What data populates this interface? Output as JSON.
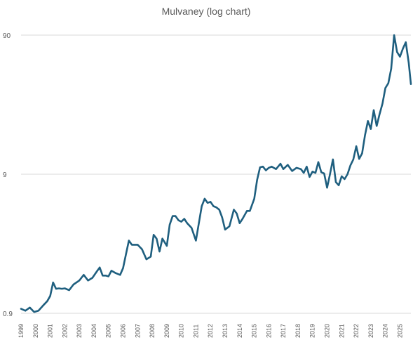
{
  "chart_data": {
    "type": "line",
    "title": "Mulvaney (log chart)",
    "y_scale": "log",
    "ylim": [
      0.9,
      90
    ],
    "y_ticks": [
      "0.9",
      "9",
      "90"
    ],
    "x_ticks": [
      "1999",
      "2000",
      "2001",
      "2002",
      "2003",
      "2004",
      "2005",
      "2006",
      "2007",
      "2008",
      "2009",
      "2010",
      "2011",
      "2012",
      "2013",
      "2014",
      "2015",
      "2016",
      "2017",
      "2018",
      "2019",
      "2020",
      "2021",
      "2022",
      "2023",
      "2024",
      "2025"
    ],
    "xlim": [
      1999,
      2025.75
    ],
    "grid": true,
    "legend": "none",
    "series": [
      {
        "color": "#1f5f7f",
        "x": [
          1999.0,
          1999.3,
          1999.6,
          1999.9,
          2000.2,
          2000.5,
          2000.8,
          2001.0,
          2001.2,
          2001.4,
          2001.6,
          2001.8,
          2002.0,
          2002.3,
          2002.6,
          2003.0,
          2003.3,
          2003.6,
          2003.9,
          2004.2,
          2004.4,
          2004.6,
          2004.8,
          2005.0,
          2005.2,
          2005.5,
          2005.8,
          2006.0,
          2006.2,
          2006.4,
          2006.6,
          2007.0,
          2007.3,
          2007.6,
          2007.9,
          2008.1,
          2008.3,
          2008.5,
          2008.7,
          2009.0,
          2009.2,
          2009.4,
          2009.6,
          2009.8,
          2010.0,
          2010.2,
          2010.4,
          2010.7,
          2011.0,
          2011.2,
          2011.4,
          2011.6,
          2011.8,
          2012.0,
          2012.2,
          2012.4,
          2012.6,
          2012.8,
          2013.0,
          2013.3,
          2013.6,
          2013.8,
          2014.0,
          2014.2,
          2014.5,
          2014.7,
          2015.0,
          2015.2,
          2015.4,
          2015.6,
          2015.8,
          2016.0,
          2016.2,
          2016.5,
          2016.8,
          2017.0,
          2017.3,
          2017.6,
          2017.9,
          2018.2,
          2018.4,
          2018.6,
          2018.8,
          2019.0,
          2019.2,
          2019.4,
          2019.6,
          2019.8,
          2020.0,
          2020.2,
          2020.4,
          2020.6,
          2020.8,
          2021.0,
          2021.2,
          2021.4,
          2021.6,
          2021.8,
          2022.0,
          2022.2,
          2022.4,
          2022.6,
          2022.8,
          2023.0,
          2023.2,
          2023.4,
          2023.6,
          2023.8,
          2024.0,
          2024.2,
          2024.4,
          2024.6,
          2024.8,
          2025.0,
          2025.2,
          2025.4,
          2025.6,
          2025.75
        ],
        "y": [
          0.97,
          0.94,
          0.99,
          0.92,
          0.94,
          1.02,
          1.1,
          1.2,
          1.5,
          1.35,
          1.36,
          1.35,
          1.36,
          1.32,
          1.45,
          1.55,
          1.7,
          1.55,
          1.62,
          1.8,
          1.92,
          1.68,
          1.68,
          1.66,
          1.82,
          1.75,
          1.7,
          1.9,
          2.4,
          3.0,
          2.8,
          2.8,
          2.6,
          2.2,
          2.3,
          3.3,
          3.1,
          2.5,
          3.1,
          2.75,
          3.9,
          4.5,
          4.5,
          4.2,
          4.1,
          4.3,
          4.0,
          3.7,
          3.0,
          4.0,
          5.3,
          6.0,
          5.6,
          5.7,
          5.3,
          5.2,
          5.0,
          4.4,
          3.6,
          3.8,
          5.0,
          4.7,
          4.0,
          4.3,
          4.9,
          4.9,
          6.0,
          8.2,
          10.1,
          10.2,
          9.6,
          10.0,
          10.2,
          9.8,
          10.7,
          9.8,
          10.5,
          9.5,
          10.0,
          9.8,
          9.2,
          10.2,
          8.6,
          9.4,
          9.2,
          11.0,
          9.3,
          9.1,
          7.2,
          9.0,
          11.5,
          7.9,
          7.5,
          8.7,
          8.3,
          9.0,
          10.4,
          11.5,
          14.3,
          11.6,
          12.7,
          17.1,
          21.7,
          19.0,
          26.0,
          20.0,
          24.3,
          29.0,
          37.5,
          40.6,
          51.7,
          90.0,
          68.0,
          63.0,
          72.0,
          80.0,
          57.0,
          40.0
        ]
      }
    ]
  }
}
